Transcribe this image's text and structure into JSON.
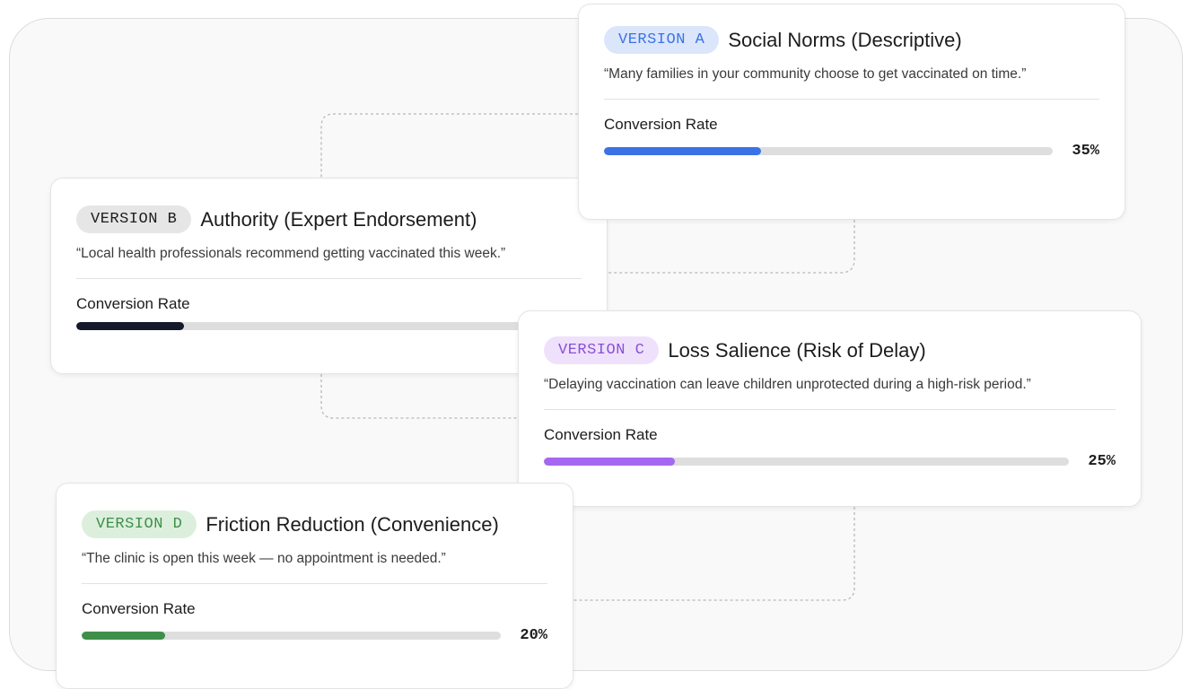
{
  "metric_label": "Conversion Rate",
  "versions": [
    {
      "badge": "VERSION A",
      "title": "Social Norms (Descriptive)",
      "quote": "“Many families in your community choose to get vaccinated on time.”",
      "rate": 0.35,
      "rate_label": "35%",
      "color": "#3b73e6",
      "badge_bg": "#dbe6fb",
      "badge_fg": "#3b73e6"
    },
    {
      "badge": "VERSION B",
      "title": "Authority (Expert Endorsement)",
      "quote": "“Local health professionals recommend getting vaccinated this week.”",
      "rate": 0.2,
      "rate_label": "",
      "color": "#141a2c",
      "badge_bg": "#e6e6e6",
      "badge_fg": "#1c1c1e"
    },
    {
      "badge": "VERSION C",
      "title": "Loss Salience (Risk of Delay)",
      "quote": "“Delaying vaccination can leave children unprotected during a high-risk period.”",
      "rate": 0.25,
      "rate_label": "25%",
      "color": "#a667f0",
      "badge_bg": "#efe1fc",
      "badge_fg": "#8a4fd8"
    },
    {
      "badge": "VERSION D",
      "title": "Friction Reduction (Convenience)",
      "quote": "“The clinic is open this week — no appointment is needed.”",
      "rate": 0.2,
      "rate_label": "20%",
      "color": "#3f8f4a",
      "badge_bg": "#dcefdd",
      "badge_fg": "#3f8f4a"
    }
  ]
}
